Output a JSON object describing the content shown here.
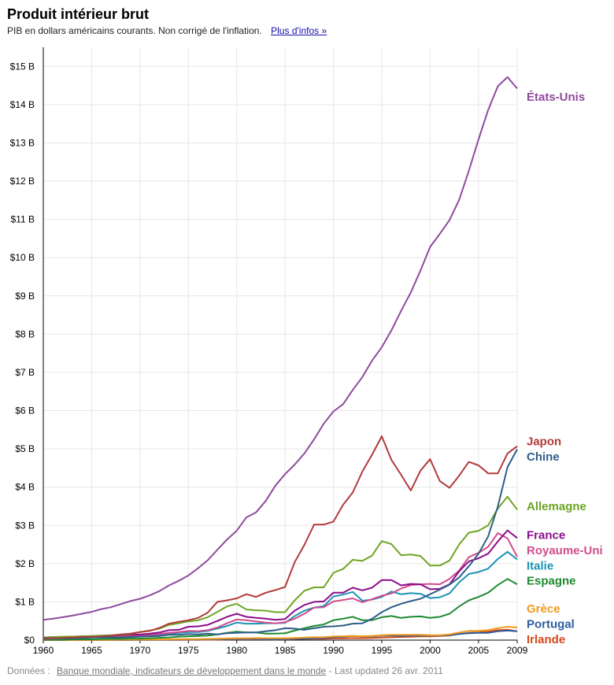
{
  "header": {
    "title": "Produit intérieur brut",
    "subtitle": "PIB en dollars américains courants. Non corrigé de l'inflation.",
    "more_link": "Plus d'infos »"
  },
  "footer": {
    "source_prefix": "Données :",
    "source_link": "Banque mondiale, indicateurs de développement dans le monde",
    "updated": "- Last updated 26 avr. 2011"
  },
  "chart_data": {
    "type": "line",
    "title": "Produit intérieur brut",
    "subtitle": "PIB en dollars américains courants. Non corrigé de l'inflation.",
    "xlabel": "",
    "ylabel": "",
    "x": [
      1960,
      1961,
      1962,
      1963,
      1964,
      1965,
      1966,
      1967,
      1968,
      1969,
      1970,
      1971,
      1972,
      1973,
      1974,
      1975,
      1976,
      1977,
      1978,
      1979,
      1980,
      1981,
      1982,
      1983,
      1984,
      1985,
      1986,
      1987,
      1988,
      1989,
      1990,
      1991,
      1992,
      1993,
      1994,
      1995,
      1996,
      1997,
      1998,
      1999,
      2000,
      2001,
      2002,
      2003,
      2004,
      2005,
      2006,
      2007,
      2008,
      2009
    ],
    "xlim": [
      1960,
      2009
    ],
    "ylim": [
      0,
      15.5
    ],
    "x_ticks": [
      1960,
      1965,
      1970,
      1975,
      1980,
      1985,
      1990,
      1995,
      2000,
      2005,
      2009
    ],
    "y_ticks": [
      {
        "value": 0,
        "label": "$0"
      },
      {
        "value": 1,
        "label": "$1 B"
      },
      {
        "value": 2,
        "label": "$2 B"
      },
      {
        "value": 3,
        "label": "$3 B"
      },
      {
        "value": 4,
        "label": "$4 B"
      },
      {
        "value": 5,
        "label": "$5 B"
      },
      {
        "value": 6,
        "label": "$6 B"
      },
      {
        "value": 7,
        "label": "$7 B"
      },
      {
        "value": 8,
        "label": "$8 B"
      },
      {
        "value": 9,
        "label": "$9 B"
      },
      {
        "value": 10,
        "label": "$10 B"
      },
      {
        "value": 11,
        "label": "$11 B"
      },
      {
        "value": 12,
        "label": "$12 B"
      },
      {
        "value": 13,
        "label": "$13 B"
      },
      {
        "value": 14,
        "label": "$14 B"
      },
      {
        "value": 15,
        "label": "$15 B"
      }
    ],
    "grid": true,
    "legend": "labels at line ends (right)",
    "series": [
      {
        "name": "États-Unis",
        "color": "#8e4b9e",
        "label_value": 14.2,
        "values": [
          0.53,
          0.56,
          0.6,
          0.64,
          0.69,
          0.74,
          0.81,
          0.86,
          0.94,
          1.02,
          1.08,
          1.17,
          1.28,
          1.43,
          1.55,
          1.69,
          1.88,
          2.09,
          2.36,
          2.63,
          2.86,
          3.21,
          3.34,
          3.64,
          4.04,
          4.34,
          4.59,
          4.88,
          5.25,
          5.66,
          5.98,
          6.17,
          6.54,
          6.88,
          7.31,
          7.66,
          8.1,
          8.61,
          9.09,
          9.66,
          10.28,
          10.62,
          10.98,
          11.51,
          12.27,
          13.09,
          13.86,
          14.48,
          14.72,
          14.42
        ]
      },
      {
        "name": "Japon",
        "color": "#b33a3a",
        "label_value": 5.2,
        "values": [
          0.04,
          0.05,
          0.06,
          0.07,
          0.08,
          0.09,
          0.1,
          0.12,
          0.15,
          0.17,
          0.21,
          0.24,
          0.32,
          0.43,
          0.48,
          0.52,
          0.58,
          0.72,
          1.0,
          1.04,
          1.09,
          1.2,
          1.13,
          1.24,
          1.31,
          1.39,
          2.04,
          2.49,
          3.02,
          3.02,
          3.1,
          3.54,
          3.86,
          4.41,
          4.85,
          5.33,
          4.71,
          4.32,
          3.91,
          4.43,
          4.73,
          4.16,
          3.98,
          4.3,
          4.66,
          4.57,
          4.36,
          4.36,
          4.88,
          5.07
        ]
      },
      {
        "name": "Chine",
        "color": "#2e5e8a",
        "label_value": 4.8,
        "values": [
          0.06,
          0.05,
          0.05,
          0.05,
          0.06,
          0.07,
          0.08,
          0.07,
          0.07,
          0.08,
          0.09,
          0.1,
          0.11,
          0.14,
          0.14,
          0.16,
          0.15,
          0.17,
          0.15,
          0.18,
          0.19,
          0.2,
          0.2,
          0.23,
          0.26,
          0.31,
          0.3,
          0.27,
          0.31,
          0.35,
          0.36,
          0.38,
          0.43,
          0.44,
          0.56,
          0.73,
          0.86,
          0.95,
          1.02,
          1.08,
          1.2,
          1.32,
          1.45,
          1.64,
          1.93,
          2.26,
          2.71,
          3.49,
          4.52,
          4.99
        ]
      },
      {
        "name": "Allemagne",
        "color": "#6ea524",
        "label_value": 3.5,
        "values": [
          0.07,
          0.08,
          0.09,
          0.09,
          0.1,
          0.11,
          0.12,
          0.13,
          0.14,
          0.16,
          0.21,
          0.25,
          0.3,
          0.4,
          0.44,
          0.49,
          0.52,
          0.6,
          0.74,
          0.88,
          0.95,
          0.8,
          0.78,
          0.77,
          0.73,
          0.73,
          1.04,
          1.29,
          1.38,
          1.38,
          1.76,
          1.86,
          2.1,
          2.07,
          2.21,
          2.59,
          2.51,
          2.22,
          2.24,
          2.2,
          1.95,
          1.95,
          2.08,
          2.5,
          2.81,
          2.86,
          3.0,
          3.44,
          3.75,
          3.41
        ]
      },
      {
        "name": "France",
        "color": "#8b0d8b",
        "label_value": 2.75,
        "values": [
          0.06,
          0.07,
          0.08,
          0.09,
          0.1,
          0.1,
          0.11,
          0.12,
          0.13,
          0.14,
          0.15,
          0.17,
          0.2,
          0.26,
          0.27,
          0.35,
          0.36,
          0.4,
          0.5,
          0.61,
          0.69,
          0.61,
          0.58,
          0.56,
          0.53,
          0.55,
          0.77,
          0.92,
          1.0,
          1.01,
          1.24,
          1.24,
          1.37,
          1.3,
          1.37,
          1.57,
          1.57,
          1.43,
          1.47,
          1.46,
          1.33,
          1.34,
          1.46,
          1.8,
          2.06,
          2.14,
          2.26,
          2.58,
          2.87,
          2.67
        ]
      },
      {
        "name": "Royaume-Uni",
        "color": "#d14d8c",
        "label_value": 2.35,
        "values": [
          0.07,
          0.08,
          0.08,
          0.09,
          0.09,
          0.1,
          0.11,
          0.11,
          0.1,
          0.11,
          0.12,
          0.14,
          0.16,
          0.19,
          0.21,
          0.24,
          0.23,
          0.26,
          0.33,
          0.44,
          0.54,
          0.52,
          0.49,
          0.46,
          0.44,
          0.47,
          0.56,
          0.69,
          0.85,
          0.86,
          1.01,
          1.05,
          1.09,
          0.99,
          1.07,
          1.16,
          1.22,
          1.35,
          1.44,
          1.46,
          1.47,
          1.46,
          1.6,
          1.82,
          2.17,
          2.28,
          2.44,
          2.8,
          2.66,
          2.18
        ]
      },
      {
        "name": "Italie",
        "color": "#1c93b5",
        "label_value": 1.95,
        "values": [
          0.04,
          0.04,
          0.05,
          0.06,
          0.06,
          0.07,
          0.07,
          0.08,
          0.08,
          0.09,
          0.11,
          0.12,
          0.14,
          0.16,
          0.19,
          0.21,
          0.21,
          0.24,
          0.3,
          0.37,
          0.46,
          0.43,
          0.43,
          0.44,
          0.44,
          0.45,
          0.63,
          0.77,
          0.85,
          0.89,
          1.14,
          1.19,
          1.26,
          1.03,
          1.06,
          1.13,
          1.27,
          1.2,
          1.23,
          1.21,
          1.1,
          1.12,
          1.22,
          1.51,
          1.73,
          1.78,
          1.87,
          2.12,
          2.31,
          2.11
        ]
      },
      {
        "name": "Espagne",
        "color": "#1f8a30",
        "label_value": 1.55,
        "values": [
          0.01,
          0.01,
          0.01,
          0.02,
          0.02,
          0.02,
          0.03,
          0.03,
          0.03,
          0.04,
          0.04,
          0.05,
          0.06,
          0.07,
          0.09,
          0.1,
          0.11,
          0.12,
          0.15,
          0.19,
          0.22,
          0.2,
          0.2,
          0.17,
          0.17,
          0.18,
          0.25,
          0.31,
          0.37,
          0.41,
          0.52,
          0.56,
          0.61,
          0.52,
          0.52,
          0.6,
          0.63,
          0.58,
          0.61,
          0.62,
          0.58,
          0.61,
          0.69,
          0.88,
          1.04,
          1.13,
          1.24,
          1.44,
          1.6,
          1.46
        ]
      },
      {
        "name": "Grèce",
        "color": "#f09a1a",
        "label_value": 0.82,
        "values": [
          0.005,
          0.005,
          0.006,
          0.006,
          0.007,
          0.008,
          0.009,
          0.009,
          0.01,
          0.012,
          0.013,
          0.014,
          0.016,
          0.021,
          0.024,
          0.025,
          0.027,
          0.031,
          0.038,
          0.044,
          0.049,
          0.05,
          0.053,
          0.05,
          0.05,
          0.05,
          0.055,
          0.065,
          0.075,
          0.078,
          0.094,
          0.1,
          0.11,
          0.1,
          0.11,
          0.13,
          0.14,
          0.14,
          0.14,
          0.14,
          0.13,
          0.13,
          0.15,
          0.2,
          0.24,
          0.24,
          0.26,
          0.31,
          0.35,
          0.33
        ]
      },
      {
        "name": "Portugal",
        "color": "#2f5d9e",
        "label_value": 0.42,
        "values": [
          0.003,
          0.003,
          0.004,
          0.004,
          0.004,
          0.005,
          0.005,
          0.006,
          0.006,
          0.007,
          0.007,
          0.008,
          0.009,
          0.012,
          0.014,
          0.016,
          0.017,
          0.018,
          0.02,
          0.022,
          0.029,
          0.028,
          0.026,
          0.023,
          0.021,
          0.024,
          0.034,
          0.04,
          0.05,
          0.055,
          0.078,
          0.088,
          0.11,
          0.094,
          0.097,
          0.12,
          0.12,
          0.11,
          0.12,
          0.12,
          0.12,
          0.12,
          0.13,
          0.16,
          0.18,
          0.19,
          0.19,
          0.23,
          0.25,
          0.23
        ]
      },
      {
        "name": "Irlande",
        "color": "#d24a1e",
        "label_value": 0.02,
        "values": [
          0.002,
          0.002,
          0.002,
          0.002,
          0.002,
          0.003,
          0.003,
          0.003,
          0.003,
          0.004,
          0.004,
          0.005,
          0.006,
          0.007,
          0.007,
          0.008,
          0.009,
          0.01,
          0.012,
          0.015,
          0.02,
          0.02,
          0.021,
          0.02,
          0.019,
          0.02,
          0.027,
          0.032,
          0.037,
          0.038,
          0.048,
          0.048,
          0.054,
          0.051,
          0.056,
          0.067,
          0.074,
          0.082,
          0.088,
          0.097,
          0.097,
          0.11,
          0.12,
          0.16,
          0.19,
          0.2,
          0.22,
          0.26,
          0.27,
          0.23
        ]
      }
    ]
  }
}
